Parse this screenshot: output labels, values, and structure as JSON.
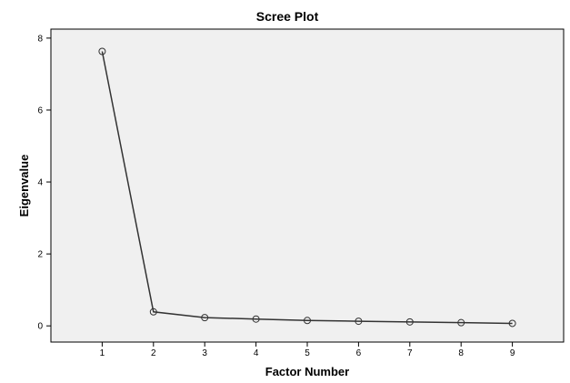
{
  "chart_data": {
    "type": "line",
    "title": "Scree Plot",
    "xlabel": "Factor Number",
    "ylabel": "Eigenvalue",
    "x": [
      1,
      2,
      3,
      4,
      5,
      6,
      7,
      8,
      9
    ],
    "series": [
      {
        "values": [
          7.63,
          0.39,
          0.23,
          0.19,
          0.15,
          0.13,
          0.11,
          0.09,
          0.07
        ]
      }
    ],
    "xlim": [
      0,
      10
    ],
    "ylim": [
      -0.45,
      8.25
    ],
    "xticks": [
      "1",
      "2",
      "3",
      "4",
      "5",
      "6",
      "7",
      "8",
      "9"
    ],
    "yticks": [
      "0",
      "2",
      "4",
      "6",
      "8"
    ],
    "grid": false,
    "legend": "none",
    "colors": {
      "plot_background": "#f0f0f0",
      "line": "#333333",
      "marker": "#333333"
    },
    "marker": "open-circle"
  }
}
